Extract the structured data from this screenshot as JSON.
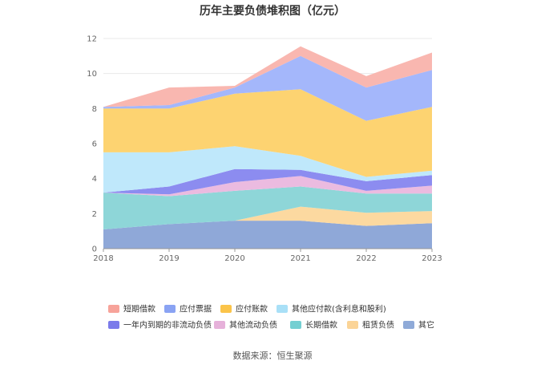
{
  "chart_data": {
    "type": "area",
    "stacked": true,
    "title": "历年主要负债堆积图（亿元）",
    "source": "数据来源：恒生聚源",
    "x": [
      "2018",
      "2019",
      "2020",
      "2021",
      "2022",
      "2023"
    ],
    "ylim": [
      0,
      12
    ],
    "yticks": [
      "0",
      "2",
      "4",
      "6",
      "8",
      "10",
      "12"
    ],
    "grid": true,
    "legend_position": "bottom",
    "series": [
      {
        "name": "其它",
        "color": "#8fa8d8",
        "values": [
          1.1,
          1.4,
          1.6,
          1.6,
          1.3,
          1.45
        ]
      },
      {
        "name": "租赁负债",
        "color": "#fcd9a0",
        "values": [
          0,
          0,
          0,
          0.8,
          0.75,
          0.7
        ]
      },
      {
        "name": "长期借款",
        "color": "#8ed6d8",
        "values": [
          2.1,
          1.6,
          1.7,
          1.15,
          1.1,
          1.0
        ]
      },
      {
        "name": "其他流动负债",
        "color": "#ebbbe0",
        "values": [
          0,
          0.1,
          0.5,
          0.6,
          0.15,
          0.45
        ]
      },
      {
        "name": "一年内到期的非流动负债",
        "color": "#8c8cf0",
        "values": [
          0,
          0.45,
          0.75,
          0.35,
          0.55,
          0.6
        ]
      },
      {
        "name": "其他应付款(含利息和股利)",
        "color": "#bfe8fb",
        "values": [
          2.3,
          1.95,
          1.3,
          0.8,
          0.25,
          0.25
        ]
      },
      {
        "name": "应付账款",
        "color": "#fdd371",
        "values": [
          2.5,
          2.5,
          3.0,
          3.8,
          3.2,
          3.65
        ]
      },
      {
        "name": "应付票据",
        "color": "#a4b7fb",
        "values": [
          0.1,
          0.2,
          0.35,
          1.9,
          1.9,
          2.1
        ]
      },
      {
        "name": "短期借款",
        "color": "#f9b7b0",
        "values": [
          0,
          1.0,
          0.1,
          0.55,
          0.65,
          1.0
        ]
      }
    ],
    "legend": [
      {
        "name": "短期借款",
        "color": "#f7a39a"
      },
      {
        "name": "应付票据",
        "color": "#8aa3f3"
      },
      {
        "name": "应付账款",
        "color": "#fbc44a"
      },
      {
        "name": "其他应付款(含利息和股利)",
        "color": "#a9e0f7"
      },
      {
        "name": "一年内到期的非流动负债",
        "color": "#7b7bea"
      },
      {
        "name": "其他流动负债",
        "color": "#e6b1da"
      },
      {
        "name": "长期借款",
        "color": "#74cfd2"
      },
      {
        "name": "租赁负债",
        "color": "#fbd497"
      },
      {
        "name": "其它",
        "color": "#8faad8"
      }
    ]
  }
}
